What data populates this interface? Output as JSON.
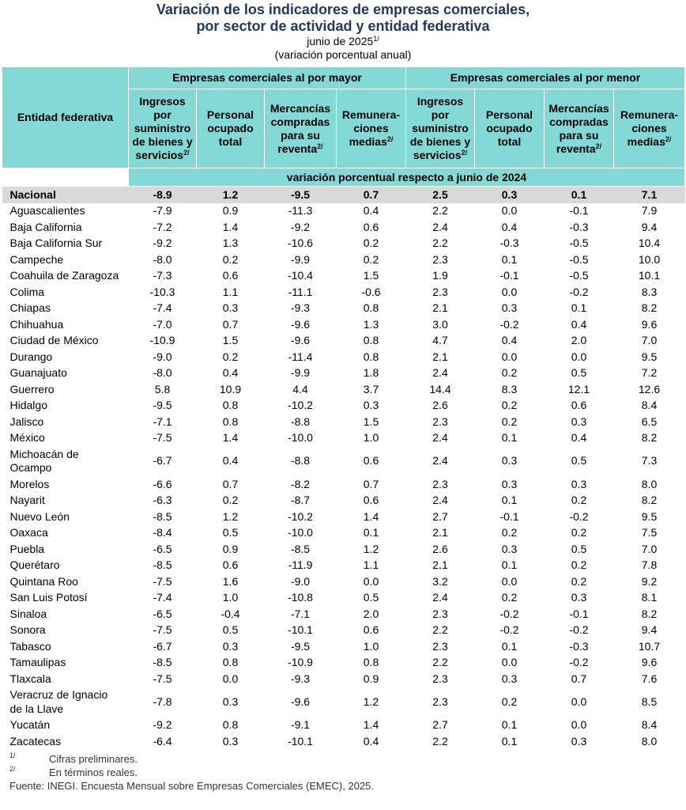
{
  "title_lines": [
    "Variación de los indicadores de empresas comerciales,",
    "por sector de actividad y entidad federativa"
  ],
  "subtitle": {
    "text": "junio de 2025",
    "sup": "1/"
  },
  "unit": "(variación porcentual anual)",
  "table": {
    "corner": "Entidad federativa",
    "groups": [
      "Empresas comerciales al por mayor",
      "Empresas comerciales al por menor"
    ],
    "columns": [
      {
        "text": "Ingresos por suministro de bienes y servicios",
        "sup": "2/"
      },
      {
        "text": "Personal ocupado total"
      },
      {
        "text": "Mercancías compradas para su reventa",
        "sup": "2/"
      },
      {
        "text": "Remunera-ciones medias",
        "sup": "2/"
      },
      {
        "text": "Ingresos por suministro de bienes y servicios",
        "sup": "2/"
      },
      {
        "text": "Personal ocupado total"
      },
      {
        "text": "Mercancías compradas para su reventa",
        "sup": "2/"
      },
      {
        "text": "Remunera-ciones medias",
        "sup": "2/"
      }
    ],
    "span_note": "variación porcentual respecto a junio de 2024",
    "rows": [
      [
        "Nacional",
        "-8.9",
        "1.2",
        "-9.5",
        "0.7",
        "2.5",
        "0.3",
        "0.1",
        "7.1"
      ],
      [
        "Aguascalientes",
        "-7.9",
        "0.9",
        "-11.3",
        "0.4",
        "2.2",
        "0.0",
        "-0.1",
        "7.9"
      ],
      [
        "Baja California",
        "-7.2",
        "1.4",
        "-9.2",
        "0.6",
        "2.4",
        "0.4",
        "-0.3",
        "9.4"
      ],
      [
        "Baja California Sur",
        "-9.2",
        "1.3",
        "-10.6",
        "0.2",
        "2.2",
        "-0.3",
        "-0.5",
        "10.4"
      ],
      [
        "Campeche",
        "-8.0",
        "0.2",
        "-9.9",
        "0.2",
        "2.3",
        "0.1",
        "-0.5",
        "10.0"
      ],
      [
        "Coahuila de Zaragoza",
        "-7.3",
        "0.6",
        "-10.4",
        "1.5",
        "1.9",
        "-0.1",
        "-0.5",
        "10.1"
      ],
      [
        "Colima",
        "-10.3",
        "1.1",
        "-11.1",
        "-0.6",
        "2.3",
        "0.0",
        "-0.2",
        "8.3"
      ],
      [
        "Chiapas",
        "-7.4",
        "0.3",
        "-9.3",
        "0.8",
        "2.1",
        "0.3",
        "0.1",
        "8.2"
      ],
      [
        "Chihuahua",
        "-7.0",
        "0.7",
        "-9.6",
        "1.3",
        "3.0",
        "-0.2",
        "0.4",
        "9.6"
      ],
      [
        "Ciudad de México",
        "-10.9",
        "1.5",
        "-9.6",
        "0.8",
        "4.7",
        "0.4",
        "2.0",
        "7.0"
      ],
      [
        "Durango",
        "-9.0",
        "0.2",
        "-11.4",
        "0.8",
        "2.1",
        "0.0",
        "0.0",
        "9.5"
      ],
      [
        "Guanajuato",
        "-8.0",
        "0.4",
        "-9.9",
        "1.8",
        "2.4",
        "0.2",
        "0.5",
        "7.2"
      ],
      [
        "Guerrero",
        "5.8",
        "10.9",
        "4.4",
        "3.7",
        "14.4",
        "8.3",
        "12.1",
        "12.6"
      ],
      [
        "Hidalgo",
        "-9.5",
        "0.8",
        "-10.2",
        "0.3",
        "2.6",
        "0.2",
        "0.6",
        "8.4"
      ],
      [
        "Jalisco",
        "-7.1",
        "0.8",
        "-8.8",
        "1.5",
        "2.3",
        "0.2",
        "0.3",
        "6.5"
      ],
      [
        "México",
        "-7.5",
        "1.4",
        "-10.0",
        "1.0",
        "2.4",
        "0.1",
        "0.4",
        "8.2"
      ],
      [
        "Michoacán de Ocampo",
        "-6.7",
        "0.4",
        "-8.8",
        "0.6",
        "2.4",
        "0.3",
        "0.5",
        "7.3"
      ],
      [
        "Morelos",
        "-6.6",
        "0.7",
        "-8.2",
        "0.7",
        "2.3",
        "0.3",
        "0.3",
        "8.0"
      ],
      [
        "Nayarit",
        "-6.3",
        "0.2",
        "-8.7",
        "0.6",
        "2.4",
        "0.1",
        "0.2",
        "8.2"
      ],
      [
        "Nuevo León",
        "-8.5",
        "1.2",
        "-10.2",
        "1.4",
        "2.7",
        "-0.1",
        "-0.2",
        "9.5"
      ],
      [
        "Oaxaca",
        "-8.4",
        "0.5",
        "-10.0",
        "0.1",
        "2.1",
        "0.2",
        "0.2",
        "7.5"
      ],
      [
        "Puebla",
        "-6.5",
        "0.9",
        "-8.5",
        "1.2",
        "2.6",
        "0.3",
        "0.5",
        "7.0"
      ],
      [
        "Querétaro",
        "-8.5",
        "0.6",
        "-11.9",
        "1.1",
        "2.1",
        "0.1",
        "0.2",
        "7.8"
      ],
      [
        "Quintana Roo",
        "-7.5",
        "1.6",
        "-9.0",
        "0.0",
        "3.2",
        "0.0",
        "0.2",
        "9.2"
      ],
      [
        "San Luis Potosí",
        "-7.4",
        "1.0",
        "-10.8",
        "0.5",
        "2.4",
        "0.2",
        "0.3",
        "8.1"
      ],
      [
        "Sinaloa",
        "-6.5",
        "-0.4",
        "-7.1",
        "2.0",
        "2.3",
        "-0.2",
        "-0.1",
        "8.2"
      ],
      [
        "Sonora",
        "-7.5",
        "0.5",
        "-10.1",
        "0.6",
        "2.2",
        "-0.2",
        "-0.2",
        "9.4"
      ],
      [
        "Tabasco",
        "-6.7",
        "0.3",
        "-9.5",
        "1.0",
        "2.3",
        "0.1",
        "-0.3",
        "10.7"
      ],
      [
        "Tamaulipas",
        "-8.5",
        "0.8",
        "-10.9",
        "0.8",
        "2.2",
        "0.0",
        "-0.2",
        "9.6"
      ],
      [
        "Tlaxcala",
        "-7.5",
        "0.0",
        "-9.3",
        "0.9",
        "2.3",
        "0.3",
        "0.7",
        "7.6"
      ],
      [
        "Veracruz de Ignacio de la Llave",
        "-7.8",
        "0.3",
        "-9.6",
        "1.2",
        "2.3",
        "0.2",
        "0.0",
        "8.5"
      ],
      [
        "Yucatán",
        "-9.2",
        "0.8",
        "-9.1",
        "1.4",
        "2.7",
        "0.1",
        "0.0",
        "8.4"
      ],
      [
        "Zacatecas",
        "-6.4",
        "0.3",
        "-10.1",
        "0.4",
        "2.2",
        "0.1",
        "0.3",
        "8.0"
      ]
    ]
  },
  "footnotes": [
    {
      "mark": "1/",
      "text": "Cifras preliminares."
    },
    {
      "mark": "2/",
      "text": "En términos reales."
    }
  ],
  "source": {
    "label": "Fuente:",
    "text": "INEGI. Encuesta Mensual sobre Empresas Comerciales (EMEC), 2025."
  }
}
